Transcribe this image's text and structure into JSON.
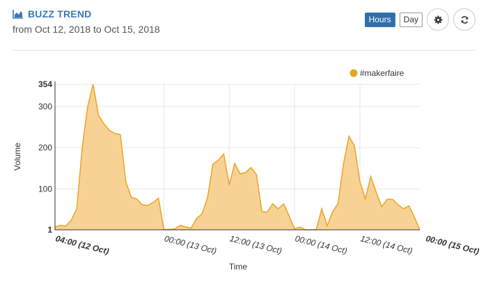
{
  "header": {
    "title": "BUZZ TREND",
    "subtitle": "from Oct 12, 2018 to Oct 15, 2018",
    "buttons": {
      "hours": "Hours",
      "day": "Day"
    },
    "icons": {
      "title": "area-chart-icon",
      "settings": "gear-icon",
      "refresh": "refresh-icon"
    }
  },
  "colors": {
    "accent": "#3a78b5",
    "series_fill": "#f8d08f",
    "series_line": "#e8a524"
  },
  "chart_data": {
    "type": "area",
    "xlabel": "Time",
    "ylabel": "Volume",
    "ylim": [
      1,
      354
    ],
    "y_ticks": [
      {
        "value": 354,
        "label": "354"
      },
      {
        "value": 300,
        "label": "300"
      },
      {
        "value": 200,
        "label": "200"
      },
      {
        "value": 100,
        "label": "100"
      },
      {
        "value": 1,
        "label": "1"
      }
    ],
    "x_start": "2018-10-12 04:00",
    "x_ticks": [
      {
        "x": "2018-10-12 04:00",
        "label": "04:00 (12 Oct)",
        "bold": true
      },
      {
        "x": "2018-10-13 00:00",
        "label": "00:00 (13 Oct)",
        "bold": false
      },
      {
        "x": "2018-10-13 12:00",
        "label": "12:00 (13 Oct)",
        "bold": false
      },
      {
        "x": "2018-10-14 00:00",
        "label": "00:00 (14 Oct)",
        "bold": false
      },
      {
        "x": "2018-10-14 12:00",
        "label": "12:00 (14 Oct)",
        "bold": false
      },
      {
        "x": "2018-10-15 00:00",
        "label": "00:00 (15 Oct)",
        "bold": true
      }
    ],
    "grid": true,
    "legend_position": "top-right",
    "series": [
      {
        "name": "#makerfaire",
        "values": [
          8,
          12,
          10,
          25,
          52,
          200,
          300,
          354,
          278,
          258,
          242,
          235,
          232,
          118,
          80,
          76,
          62,
          60,
          67,
          78,
          2,
          2,
          3,
          12,
          8,
          5,
          28,
          40,
          78,
          160,
          170,
          185,
          110,
          162,
          137,
          140,
          152,
          135,
          45,
          44,
          64,
          52,
          64,
          35,
          3,
          8,
          1,
          1,
          2,
          52,
          11,
          45,
          65,
          162,
          228,
          205,
          118,
          76,
          130,
          92,
          57,
          75,
          75,
          62,
          52,
          59,
          32,
          2
        ]
      }
    ]
  }
}
